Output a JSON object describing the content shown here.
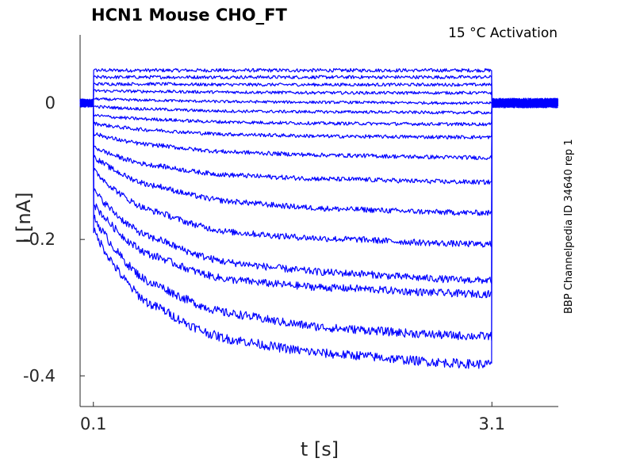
{
  "chart_data": {
    "type": "line",
    "title": "HCN1  Mouse  CHO_FT",
    "annotation": "15 °C  Activation",
    "side_label": "BBP Channelpedia ID 34640 rep 1",
    "xlabel": "t [s]",
    "ylabel": "I [nA]",
    "xlim": [
      0.0,
      3.6
    ],
    "ylim": [
      -0.445,
      0.1
    ],
    "x_ticks": [
      0.1,
      3.1
    ],
    "x_tick_labels": [
      "0.1",
      "3.1"
    ],
    "y_ticks": [
      0,
      -0.2,
      -0.4
    ],
    "y_tick_labels": [
      "0",
      "-0.2",
      "-0.4"
    ],
    "step_on": 0.1,
    "step_off": 3.1,
    "series_color": "#0000ff",
    "series": [
      {
        "values": [
          0.048,
          0.048,
          0.048,
          0.048,
          0.048
        ]
      },
      {
        "values": [
          0.038,
          0.038,
          0.038,
          0.038,
          0.038
        ]
      },
      {
        "values": [
          0.028,
          0.028,
          0.027,
          0.027,
          0.027
        ]
      },
      {
        "values": [
          0.018,
          0.017,
          0.016,
          0.015,
          0.015
        ]
      },
      {
        "values": [
          0.006,
          0.004,
          0.002,
          0.001,
          0.0
        ]
      },
      {
        "values": [
          -0.005,
          -0.009,
          -0.012,
          -0.013,
          -0.014
        ]
      },
      {
        "values": [
          -0.018,
          -0.024,
          -0.028,
          -0.03,
          -0.031
        ]
      },
      {
        "values": [
          -0.03,
          -0.04,
          -0.046,
          -0.049,
          -0.05
        ]
      },
      {
        "values": [
          -0.045,
          -0.062,
          -0.072,
          -0.077,
          -0.08
        ]
      },
      {
        "values": [
          -0.065,
          -0.092,
          -0.106,
          -0.112,
          -0.116
        ]
      },
      {
        "values": [
          -0.08,
          -0.122,
          -0.145,
          -0.156,
          -0.161
        ]
      },
      {
        "values": [
          -0.1,
          -0.16,
          -0.19,
          -0.2,
          -0.207
        ]
      },
      {
        "values": [
          -0.13,
          -0.2,
          -0.235,
          -0.25,
          -0.26
        ]
      },
      {
        "values": [
          -0.15,
          -0.226,
          -0.26,
          -0.272,
          -0.28
        ]
      },
      {
        "values": [
          -0.17,
          -0.268,
          -0.31,
          -0.332,
          -0.342
        ]
      },
      {
        "values": [
          -0.19,
          -0.3,
          -0.348,
          -0.37,
          -0.383
        ]
      }
    ],
    "series_x": [
      0.11,
      0.6,
      1.2,
      2.1,
      3.08
    ]
  }
}
